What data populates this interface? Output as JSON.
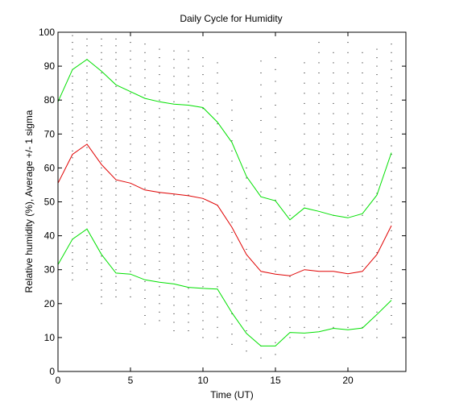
{
  "chart_data": {
    "type": "line",
    "title": "Daily Cycle for Humidity",
    "xlabel": "Time (UT)",
    "ylabel": "Relative humidity (%), Average +/- 1 sigma",
    "xlim": [
      0,
      24
    ],
    "ylim": [
      0,
      100
    ],
    "xticks": [
      0,
      5,
      10,
      15,
      20
    ],
    "yticks": [
      0,
      10,
      20,
      30,
      40,
      50,
      60,
      70,
      80,
      90,
      100
    ],
    "grid": false,
    "legend": "none",
    "x": [
      0,
      1,
      2,
      3,
      4,
      5,
      6,
      7,
      8,
      9,
      10,
      11,
      12,
      13,
      14,
      15,
      16,
      17,
      18,
      19,
      20,
      21,
      22,
      23
    ],
    "series": [
      {
        "role": "mean+1sigma",
        "color": "#00e000",
        "values": [
          79.5,
          89,
          92,
          88.5,
          84.5,
          82.5,
          80.5,
          79.5,
          78.8,
          78.5,
          77.8,
          73.5,
          67.5,
          57.5,
          51.5,
          50.3,
          44.7,
          48.2,
          47.2,
          46,
          45.3,
          46.5,
          52,
          64.5
        ]
      },
      {
        "role": "mean",
        "color": "#e00000",
        "values": [
          55.5,
          64,
          67,
          61,
          56.5,
          55.5,
          53.5,
          52.8,
          52.3,
          51.8,
          51,
          49,
          42.5,
          34.5,
          29.5,
          28.7,
          28.2,
          30,
          29.5,
          29.5,
          28.8,
          29.5,
          34.5,
          43
        ]
      },
      {
        "role": "mean-1sigma",
        "color": "#00e000",
        "values": [
          31.5,
          39,
          42,
          34.5,
          29,
          28.7,
          27,
          26.3,
          25.8,
          24.8,
          24.5,
          24.3,
          17.3,
          11.2,
          7.5,
          7.5,
          11.5,
          11.3,
          11.7,
          12.7,
          12.3,
          12.8,
          16.8,
          21
        ]
      }
    ],
    "scatter_color": "#000000",
    "scatter_columns": [
      {
        "x": 1,
        "ymin": 27,
        "ymax": 99,
        "step": 2
      },
      {
        "x": 2,
        "ymin": 30,
        "ymax": 99,
        "step": 2
      },
      {
        "x": 3,
        "ymin": 20,
        "ymax": 98,
        "step": 2
      },
      {
        "x": 4,
        "ymin": 22,
        "ymax": 98,
        "step": 2
      },
      {
        "x": 5,
        "ymin": 22,
        "ymax": 98,
        "step": 2.5
      },
      {
        "x": 6,
        "ymin": 14,
        "ymax": 97,
        "step": 2.5
      },
      {
        "x": 7,
        "ymin": 15,
        "ymax": 96,
        "step": 2.5
      },
      {
        "x": 8,
        "ymin": 12,
        "ymax": 96,
        "step": 2.5
      },
      {
        "x": 9,
        "ymin": 12,
        "ymax": 95,
        "step": 2.5
      },
      {
        "x": 10,
        "ymin": 10,
        "ymax": 94,
        "step": 2.5
      },
      {
        "x": 11,
        "ymin": 10,
        "ymax": 93,
        "step": 3
      },
      {
        "x": 12,
        "ymin": 8,
        "ymax": 80,
        "step": 3
      },
      {
        "x": 13,
        "ymin": 6,
        "ymax": 60,
        "step": 3
      },
      {
        "x": 14,
        "ymin": 4,
        "ymax": 94,
        "step": 3.5
      },
      {
        "x": 15,
        "ymin": 5,
        "ymax": 95,
        "step": 3.5
      },
      {
        "x": 16,
        "ymin": 10,
        "ymax": 63,
        "step": 3
      },
      {
        "x": 17,
        "ymin": 10,
        "ymax": 93,
        "step": 3
      },
      {
        "x": 18,
        "ymin": 10,
        "ymax": 97,
        "step": 3
      },
      {
        "x": 19,
        "ymin": 10,
        "ymax": 96,
        "step": 3
      },
      {
        "x": 20,
        "ymin": 10,
        "ymax": 99,
        "step": 3
      },
      {
        "x": 21,
        "ymin": 10,
        "ymax": 95,
        "step": 3
      },
      {
        "x": 22,
        "ymin": 10,
        "ymax": 96,
        "step": 2.5
      },
      {
        "x": 23,
        "ymin": 14,
        "ymax": 97,
        "step": 2.5
      }
    ]
  }
}
